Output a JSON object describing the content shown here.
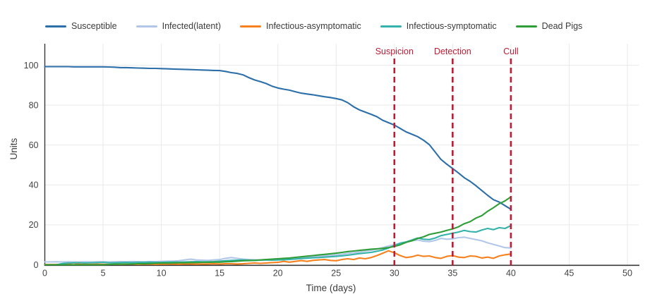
{
  "chart_data": {
    "type": "line",
    "title": "",
    "xlabel": "Time (days)",
    "ylabel": "Units",
    "x_ticks": [
      0,
      5,
      10,
      15,
      20,
      25,
      30,
      35,
      40,
      45,
      50
    ],
    "y_ticks": [
      0,
      20,
      40,
      60,
      80,
      100
    ],
    "xlim": [
      0,
      50
    ],
    "ylim": [
      0,
      110
    ],
    "grid": true,
    "legend_position": "top",
    "x_start": 0,
    "x_step": 0.5,
    "series": [
      {
        "name": "Susceptible",
        "color": "#2d6fa9",
        "values": [
          99.3,
          99.3,
          99.3,
          99.3,
          99.3,
          99.2,
          99.2,
          99.2,
          99.2,
          99.2,
          99.2,
          99.1,
          99.0,
          98.8,
          98.8,
          98.7,
          98.6,
          98.5,
          98.4,
          98.4,
          98.3,
          98.2,
          98.1,
          98.0,
          97.9,
          97.8,
          97.7,
          97.6,
          97.5,
          97.4,
          97.3,
          96.9,
          96.3,
          95.9,
          95.2,
          93.8,
          92.6,
          91.8,
          90.8,
          89.5,
          88.6,
          88.0,
          87.5,
          86.7,
          86.0,
          85.6,
          85.2,
          84.7,
          84.2,
          83.8,
          83.3,
          82.6,
          81.2,
          79.2,
          77.6,
          76.5,
          75.4,
          74.2,
          72.4,
          71.2,
          70.0,
          68.3,
          66.6,
          65.4,
          64.2,
          62.4,
          60.2,
          56.5,
          52.8,
          50.4,
          48.2,
          46.0,
          43.6,
          41.8,
          39.6,
          37.2,
          34.8,
          32.6,
          31.4,
          29.6,
          27.8
        ]
      },
      {
        "name": "Infected(latent)",
        "color": "#b2c7e8",
        "values": [
          1.4,
          1.4,
          1.5,
          1.4,
          1.5,
          1.4,
          1.4,
          1.5,
          1.4,
          1.5,
          1.5,
          1.4,
          1.5,
          1.6,
          1.5,
          1.6,
          1.6,
          1.5,
          1.6,
          1.6,
          1.7,
          1.8,
          1.8,
          2.0,
          2.4,
          2.8,
          2.4,
          2.3,
          2.2,
          2.4,
          2.6,
          3.2,
          3.6,
          3.2,
          2.8,
          2.6,
          2.5,
          2.4,
          2.6,
          2.8,
          3.0,
          2.8,
          3.0,
          3.3,
          3.6,
          3.9,
          3.8,
          4.3,
          4.5,
          4.7,
          4.9,
          5.3,
          5.7,
          6.0,
          6.4,
          6.9,
          7.2,
          7.8,
          8.6,
          9.4,
          10.0,
          10.8,
          11.4,
          12.0,
          12.4,
          11.8,
          11.6,
          12.2,
          13.2,
          12.8,
          13.0,
          13.6,
          13.8,
          13.2,
          12.6,
          12.0,
          11.0,
          10.2,
          9.4,
          8.6,
          8.4
        ]
      },
      {
        "name": "Infectious-asymptomatic",
        "color": "#f5821f",
        "values": [
          0.1,
          0.1,
          0.1,
          0.2,
          0.6,
          0.9,
          0.3,
          0.2,
          0.2,
          0.3,
          0.2,
          0.2,
          0.3,
          0.2,
          0.3,
          0.3,
          0.2,
          0.3,
          0.3,
          0.2,
          0.3,
          0.3,
          0.4,
          0.3,
          0.4,
          0.4,
          0.3,
          0.4,
          0.4,
          0.5,
          0.4,
          0.5,
          0.5,
          0.4,
          0.5,
          0.7,
          0.9,
          0.7,
          0.9,
          1.1,
          1.2,
          1.7,
          1.3,
          1.7,
          2.1,
          1.7,
          2.2,
          2.4,
          2.6,
          2.2,
          2.0,
          2.6,
          3.0,
          2.6,
          3.4,
          3.0,
          3.6,
          4.6,
          5.8,
          7.0,
          6.0,
          4.6,
          3.6,
          4.0,
          4.8,
          4.2,
          4.4,
          3.6,
          3.2,
          4.2,
          4.6,
          3.8,
          3.6,
          4.4,
          4.2,
          3.4,
          3.8,
          3.2,
          4.4,
          5.0,
          5.4
        ]
      },
      {
        "name": "Infectious-symptomatic",
        "color": "#35b2a9",
        "values": [
          0.0,
          0.0,
          0.0,
          0.6,
          0.9,
          1.0,
          1.0,
          0.9,
          1.0,
          1.1,
          1.2,
          1.0,
          1.0,
          1.1,
          1.2,
          1.1,
          1.2,
          1.2,
          1.3,
          1.2,
          1.2,
          1.3,
          1.4,
          1.3,
          1.4,
          1.5,
          1.6,
          1.5,
          1.5,
          1.6,
          1.8,
          2.0,
          2.2,
          2.3,
          2.4,
          2.3,
          2.2,
          2.3,
          2.4,
          2.3,
          2.4,
          2.5,
          2.7,
          2.9,
          3.1,
          3.3,
          3.5,
          3.6,
          3.8,
          4.0,
          4.2,
          4.5,
          4.8,
          5.2,
          5.6,
          5.9,
          6.2,
          6.8,
          7.4,
          8.4,
          9.6,
          10.8,
          11.4,
          12.4,
          13.4,
          12.8,
          12.6,
          13.4,
          14.6,
          15.2,
          15.8,
          16.4,
          17.2,
          16.6,
          16.4,
          17.4,
          18.2,
          17.6,
          18.6,
          18.2,
          19.6
        ]
      },
      {
        "name": "Dead Pigs",
        "color": "#2f9e38",
        "values": [
          0.0,
          0.0,
          0.0,
          0.0,
          0.0,
          0.0,
          0.0,
          0.0,
          0.0,
          0.0,
          0.0,
          0.1,
          0.3,
          0.3,
          0.4,
          0.4,
          0.5,
          0.5,
          0.6,
          0.7,
          0.8,
          0.8,
          0.9,
          1.0,
          1.0,
          1.1,
          1.1,
          1.2,
          1.2,
          1.3,
          1.3,
          1.5,
          1.6,
          1.8,
          2.0,
          2.1,
          2.2,
          2.4,
          2.6,
          2.8,
          3.0,
          3.2,
          3.4,
          3.7,
          4.0,
          4.3,
          4.6,
          4.9,
          5.2,
          5.5,
          5.8,
          6.2,
          6.6,
          6.9,
          7.2,
          7.5,
          7.8,
          8.0,
          8.2,
          8.6,
          9.2,
          10.0,
          11.2,
          12.0,
          13.2,
          14.0,
          15.2,
          15.8,
          16.4,
          17.2,
          18.0,
          19.0,
          20.6,
          21.6,
          23.4,
          24.6,
          26.8,
          28.6,
          30.6,
          32.0,
          34.0
        ]
      }
    ],
    "annotations": [
      {
        "label": "Suspicion",
        "x": 30
      },
      {
        "label": "Detection",
        "x": 35
      },
      {
        "label": "Cull",
        "x": 40
      }
    ],
    "annotation_color": "#bd1b35",
    "colors": {
      "axis_line": "#38383a",
      "tick_text": "#444444",
      "gridline": "#e9e9e9",
      "background": "#ffffff"
    }
  }
}
